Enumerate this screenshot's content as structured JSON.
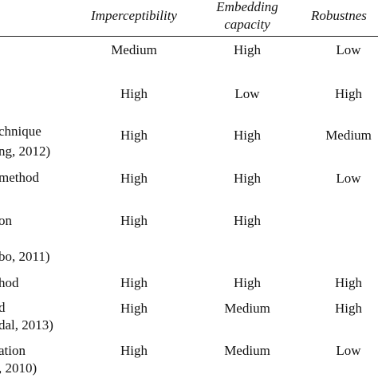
{
  "table": {
    "header": {
      "imperceptibility": "Imperceptibility",
      "embedding_capacity": [
        "Embedding",
        "capacity"
      ],
      "robustness": "Robustnes"
    },
    "rows": [
      {
        "imperceptibility": "Medium",
        "embedding_capacity": "High",
        "robustness": "Low"
      },
      {
        "imperceptibility": "High",
        "embedding_capacity": "Low",
        "robustness": "High"
      },
      {
        "label": [
          "chnique",
          "ng, 2012)"
        ],
        "imperceptibility": "High",
        "embedding_capacity": "High",
        "robustness": "Medium"
      },
      {
        "label": [
          "method"
        ],
        "imperceptibility": "High",
        "embedding_capacity": "High",
        "robustness": "Low"
      },
      {
        "label": [
          "on",
          "",
          "bo, 2011)"
        ],
        "imperceptibility": "High",
        "embedding_capacity": "High"
      },
      {
        "label": [
          "hod"
        ],
        "imperceptibility": "High",
        "embedding_capacity": "High",
        "robustness": "High"
      },
      {
        "label": [
          "d",
          "dal, 2013)"
        ],
        "imperceptibility": "High",
        "embedding_capacity": "Medium",
        "robustness": "High"
      },
      {
        "label": [
          "ation",
          ", 2010)"
        ],
        "imperceptibility": "High",
        "embedding_capacity": "Medium",
        "robustness": "Low"
      }
    ]
  }
}
